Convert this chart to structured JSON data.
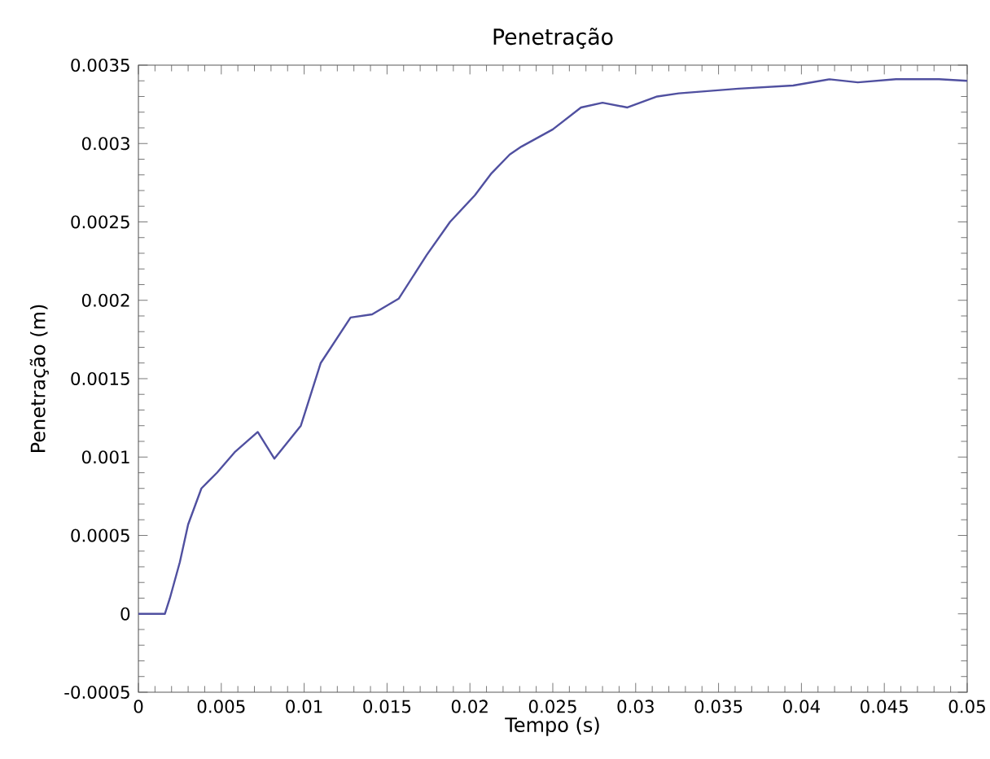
{
  "chart_data": {
    "type": "line",
    "title": "Penetração",
    "xlabel": "Tempo (s)",
    "ylabel": "Penetração (m)",
    "x": [
      0,
      0.0016,
      0.0019,
      0.0025,
      0.003,
      0.0038,
      0.00474,
      0.0058,
      0.0072,
      0.0082,
      0.0098,
      0.011,
      0.0128,
      0.0141,
      0.0157,
      0.0174,
      0.0188,
      0.0203,
      0.0213,
      0.0224,
      0.0231,
      0.025,
      0.0267,
      0.028,
      0.0295,
      0.0313,
      0.0326,
      0.0362,
      0.0395,
      0.0417,
      0.0434,
      0.0457,
      0.0483,
      0.05
    ],
    "series": [
      {
        "color": "#5050a0",
        "values": [
          0,
          0,
          0.0001,
          0.00033,
          0.00057,
          0.0008,
          0.0009,
          0.00103,
          0.00116,
          0.00099,
          0.0012,
          0.0016,
          0.00189,
          0.00191,
          0.00201,
          0.00229,
          0.0025,
          0.00267,
          0.00281,
          0.00293,
          0.00298,
          0.00309,
          0.00323,
          0.00326,
          0.00323,
          0.0033,
          0.00332,
          0.00335,
          0.00337,
          0.00341,
          0.00339,
          0.00341,
          0.00341,
          0.0034
        ]
      }
    ],
    "xlim": [
      0,
      0.05
    ],
    "ylim": [
      -0.0005,
      0.0035
    ],
    "xticks": [
      0,
      0.005,
      0.01,
      0.015,
      0.02,
      0.025,
      0.03,
      0.035,
      0.04,
      0.045,
      0.05
    ],
    "yticks": [
      -0.0005,
      0,
      0.0005,
      0.001,
      0.0015,
      0.002,
      0.0025,
      0.003,
      0.0035
    ],
    "grid": false
  }
}
